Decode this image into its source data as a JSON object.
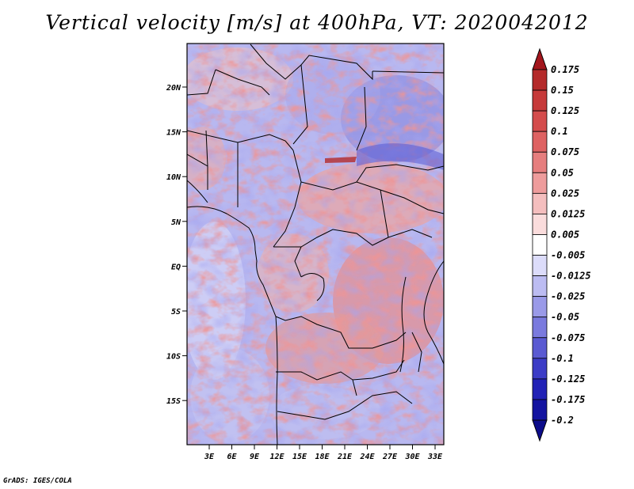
{
  "map": {
    "title": "Vertical velocity [m/s] at 400hPa, VT: 2020042012",
    "lat_ticks": [
      "20N",
      "15N",
      "10N",
      "5N",
      "EQ",
      "5S",
      "10S",
      "15S"
    ],
    "lon_ticks": [
      "3E",
      "6E",
      "9E",
      "12E",
      "15E",
      "18E",
      "21E",
      "24E",
      "27E",
      "30E",
      "33E"
    ],
    "extent": {
      "lon": [
        0,
        35
      ],
      "lat": [
        -20,
        25
      ]
    },
    "projection": "lat-lon",
    "colorbar": {
      "levels": [
        "0.175",
        "0.15",
        "0.125",
        "0.1",
        "0.075",
        "0.05",
        "0.025",
        "0.0125",
        "0.005",
        "-0.005",
        "-0.0125",
        "-0.025",
        "-0.05",
        "-0.075",
        "-0.1",
        "-0.125",
        "-0.175",
        "-0.2"
      ],
      "colors": [
        "#a3161d",
        "#b42a2a",
        "#c63a3a",
        "#d44c4c",
        "#de6262",
        "#e67e7e",
        "#ee9c9c",
        "#f4bebe",
        "#fadcdc",
        "#ffffff",
        "#dcdcfa",
        "#bcbcf2",
        "#9a9ae8",
        "#7a7ade",
        "#5a5ad2",
        "#3c3cc6",
        "#2222b6",
        "#1414a0",
        "#0c0c8a"
      ],
      "extend": "both"
    },
    "credit": "GrADS: IGES/COLA"
  }
}
